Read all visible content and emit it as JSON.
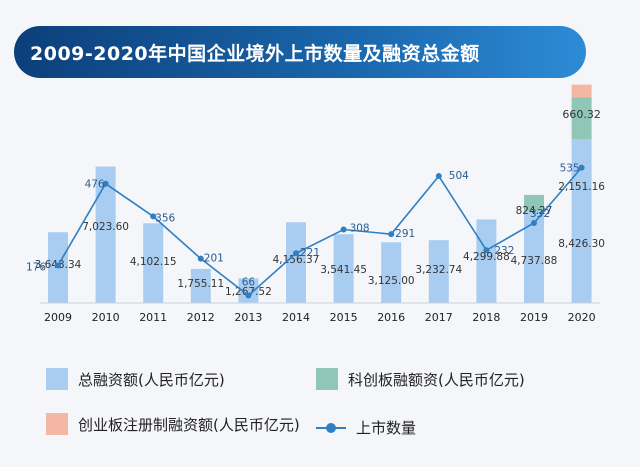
{
  "title": "2009-2020年中国企业境外上市数量及融资总金额",
  "colors": {
    "total": "#a9cdf1",
    "star": "#8fc6b5",
    "chinext": "#f4b7a4",
    "line": "#2e7fc4",
    "banner_start": "#0c3f7a",
    "banner_end": "#2d8bd6"
  },
  "legend": {
    "total": "总融资额(人民币亿元)",
    "star": "科创板融额资(人民币亿元)",
    "chinext": "创业板注册制融资额(人民币亿元)",
    "count": "上市数量"
  },
  "chart_data": {
    "type": "bar",
    "categories": [
      "2009",
      "2010",
      "2011",
      "2012",
      "2013",
      "2014",
      "2015",
      "2016",
      "2017",
      "2018",
      "2019",
      "2020"
    ],
    "series": [
      {
        "name": "总融资额(人民币亿元)",
        "type": "bar",
        "values": [
          3643.34,
          7023.6,
          4102.15,
          1755.11,
          1267.52,
          4156.37,
          3541.45,
          3125.0,
          3232.74,
          4299.88,
          4737.88,
          8426.3
        ],
        "labels": [
          "3,643.34",
          "7,023.60",
          "4,102.15",
          "1,755.11",
          "1,267.52",
          "4,156.37",
          "3,541.45",
          "3,125.00",
          "3,232.74",
          "4,299.88",
          "4,737.88",
          "8,426.30"
        ]
      },
      {
        "name": "科创板融额资(人民币亿元)",
        "type": "bar",
        "stacked": true,
        "values": [
          null,
          null,
          null,
          null,
          null,
          null,
          null,
          null,
          null,
          null,
          824.27,
          2151.16
        ],
        "labels": [
          "",
          "",
          "",
          "",
          "",
          "",
          "",
          "",
          "",
          "",
          "824.27",
          "2,151.16"
        ]
      },
      {
        "name": "创业板注册制融资额(人民币亿元)",
        "type": "bar",
        "stacked": true,
        "values": [
          null,
          null,
          null,
          null,
          null,
          null,
          null,
          null,
          null,
          null,
          null,
          660.32
        ],
        "labels": [
          "",
          "",
          "",
          "",
          "",
          "",
          "",
          "",
          "",
          "",
          "",
          "660.32"
        ]
      },
      {
        "name": "上市数量",
        "type": "line",
        "values": [
          176,
          476,
          356,
          201,
          66,
          221,
          308,
          291,
          504,
          232,
          332,
          535
        ],
        "labels": [
          "176",
          "476",
          "356",
          "201",
          "66",
          "221",
          "308",
          "291",
          "504",
          "232",
          "332",
          "535"
        ]
      }
    ],
    "grid": false,
    "legend_position": "bottom"
  }
}
